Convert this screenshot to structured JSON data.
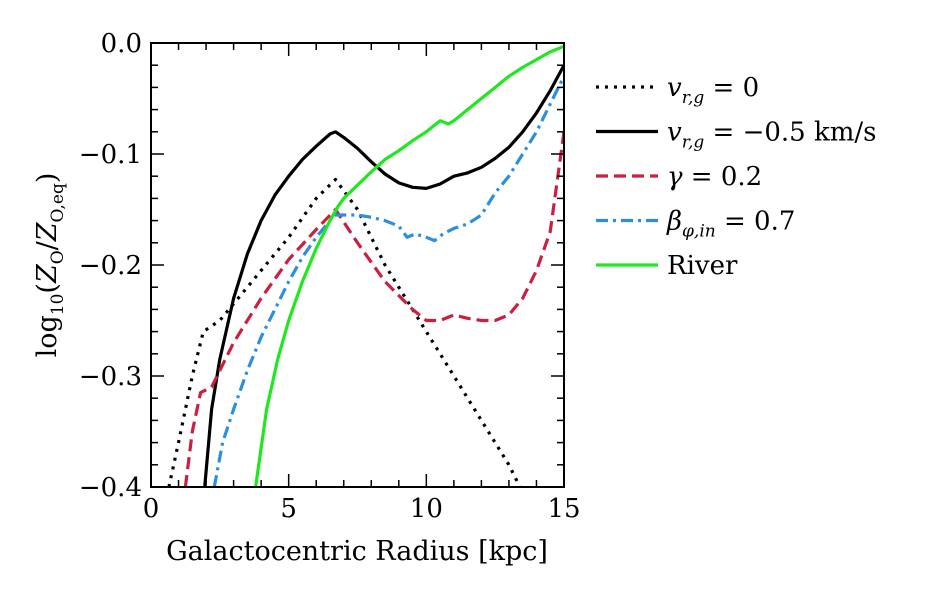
{
  "chart_data": {
    "type": "line",
    "xlabel": "Galactocentric Radius [kpc]",
    "ylabel": {
      "prefix": "log",
      "base": "10",
      "open": "(",
      "num_var": "Z",
      "num_sub": "O",
      "slash": "/",
      "den_var": "Z",
      "den_sub": "O,eq",
      "close": ")"
    },
    "xlim": [
      0,
      15
    ],
    "ylim": [
      -0.4,
      0.0
    ],
    "xticks": [
      {
        "value": 0,
        "label": "0"
      },
      {
        "value": 5,
        "label": "5"
      },
      {
        "value": 10,
        "label": "10"
      },
      {
        "value": 15,
        "label": "15"
      }
    ],
    "yticks": [
      {
        "value": 0.0,
        "label": "0.0"
      },
      {
        "value": -0.1,
        "label": "−0.1"
      },
      {
        "value": -0.2,
        "label": "−0.2"
      },
      {
        "value": -0.3,
        "label": "−0.3"
      },
      {
        "value": -0.4,
        "label": "−0.4"
      }
    ],
    "grid": false,
    "legend_position": "outside-right",
    "series": [
      {
        "name": "v_{r,g} = 0",
        "legend": [
          {
            "t": "v",
            "i": true
          },
          {
            "t": "r,g",
            "i": true,
            "sub": true
          },
          {
            "t": " = 0"
          }
        ],
        "color": "#000000",
        "style": "dotted",
        "x": [
          0.65,
          1.0,
          1.5,
          1.9,
          2.5,
          3.0,
          4.0,
          5.0,
          6.0,
          6.7,
          7.5,
          8.5,
          9.5,
          10.0,
          11.0,
          12.0,
          13.0,
          13.4
        ],
        "y": [
          -0.4,
          -0.36,
          -0.3,
          -0.26,
          -0.25,
          -0.235,
          -0.205,
          -0.175,
          -0.14,
          -0.123,
          -0.15,
          -0.2,
          -0.24,
          -0.26,
          -0.3,
          -0.34,
          -0.38,
          -0.4
        ]
      },
      {
        "name": "v_{r,g} = −0.5 km/s",
        "legend": [
          {
            "t": "v",
            "i": true
          },
          {
            "t": "r,g",
            "i": true,
            "sub": true
          },
          {
            "t": " = −0.5 km/s"
          }
        ],
        "color": "#000000",
        "style": "solid",
        "x": [
          1.95,
          2.2,
          2.5,
          3.0,
          3.5,
          4.0,
          4.5,
          5.0,
          5.5,
          6.0,
          6.5,
          6.7,
          7.0,
          7.5,
          8.0,
          8.5,
          9.0,
          9.5,
          10.0,
          10.5,
          11.0,
          11.5,
          12.0,
          12.5,
          13.0,
          13.5,
          14.0,
          14.5,
          15.0
        ],
        "y": [
          -0.4,
          -0.33,
          -0.285,
          -0.23,
          -0.19,
          -0.16,
          -0.137,
          -0.12,
          -0.105,
          -0.093,
          -0.082,
          -0.08,
          -0.085,
          -0.095,
          -0.107,
          -0.118,
          -0.126,
          -0.13,
          -0.131,
          -0.127,
          -0.12,
          -0.117,
          -0.112,
          -0.104,
          -0.094,
          -0.08,
          -0.063,
          -0.043,
          -0.02
        ]
      },
      {
        "name": "γ = 0.2",
        "legend": [
          {
            "t": "γ",
            "i": true
          },
          {
            "t": " = 0.2"
          }
        ],
        "color": "#cc1f3f",
        "style": "dashed",
        "x": [
          1.25,
          1.5,
          1.8,
          2.2,
          3.0,
          4.0,
          5.0,
          6.0,
          6.7,
          7.5,
          8.5,
          9.5,
          10.0,
          10.5,
          11.0,
          11.5,
          12.0,
          12.5,
          13.0,
          13.5,
          14.0,
          14.5,
          15.0
        ],
        "y": [
          -0.4,
          -0.35,
          -0.315,
          -0.31,
          -0.27,
          -0.23,
          -0.195,
          -0.168,
          -0.15,
          -0.18,
          -0.215,
          -0.24,
          -0.25,
          -0.25,
          -0.245,
          -0.248,
          -0.25,
          -0.25,
          -0.245,
          -0.23,
          -0.205,
          -0.17,
          -0.08
        ]
      },
      {
        "name": "β_{φ,in} = 0.7",
        "legend": [
          {
            "t": "β",
            "i": true
          },
          {
            "t": "φ,in",
            "i": true,
            "sub": true
          },
          {
            "t": " = 0.7"
          }
        ],
        "color": "#2b8fde",
        "style": "dashdot",
        "x": [
          2.3,
          2.6,
          3.0,
          3.5,
          4.0,
          4.5,
          5.0,
          5.5,
          6.0,
          6.5,
          6.7,
          7.0,
          7.5,
          8.0,
          8.5,
          9.0,
          9.3,
          9.6,
          10.0,
          10.3,
          10.6,
          11.0,
          11.5,
          12.0,
          12.5,
          13.0,
          13.5,
          14.0,
          14.5,
          15.0
        ],
        "y": [
          -0.4,
          -0.36,
          -0.33,
          -0.295,
          -0.265,
          -0.24,
          -0.215,
          -0.193,
          -0.175,
          -0.16,
          -0.155,
          -0.155,
          -0.155,
          -0.157,
          -0.16,
          -0.165,
          -0.175,
          -0.172,
          -0.175,
          -0.178,
          -0.172,
          -0.167,
          -0.163,
          -0.155,
          -0.135,
          -0.12,
          -0.1,
          -0.08,
          -0.055,
          -0.03
        ]
      },
      {
        "name": "River",
        "legend": [
          {
            "t": "River"
          }
        ],
        "color": "#1ee81e",
        "style": "solid",
        "x": [
          3.8,
          4.2,
          4.6,
          5.0,
          5.5,
          6.0,
          6.5,
          6.8,
          7.0,
          7.5,
          8.0,
          8.5,
          9.0,
          9.5,
          10.0,
          10.5,
          10.8,
          11.0,
          11.5,
          12.0,
          12.5,
          13.0,
          13.5,
          14.0,
          14.5,
          15.0
        ],
        "y": [
          -0.4,
          -0.33,
          -0.285,
          -0.25,
          -0.215,
          -0.185,
          -0.16,
          -0.147,
          -0.14,
          -0.128,
          -0.116,
          -0.105,
          -0.097,
          -0.088,
          -0.08,
          -0.07,
          -0.073,
          -0.07,
          -0.06,
          -0.05,
          -0.04,
          -0.03,
          -0.022,
          -0.015,
          -0.008,
          -0.003
        ]
      }
    ]
  }
}
